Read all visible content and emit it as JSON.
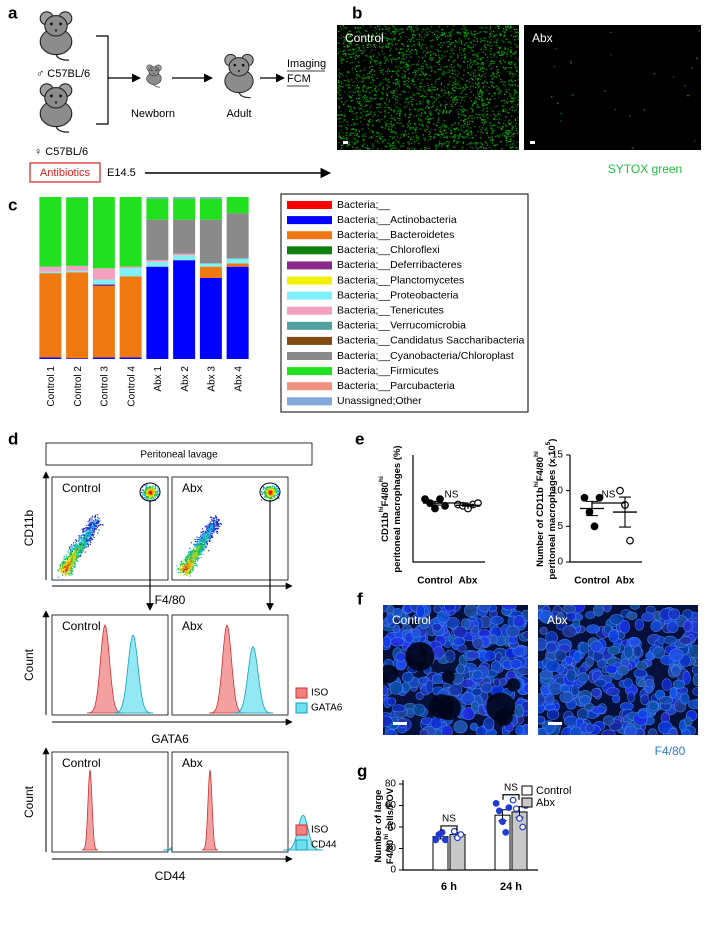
{
  "figure": {
    "a": {
      "label": "a",
      "male": "♂ C57BL/6",
      "female": "♀ C57BL/6",
      "newborn": "Newborn",
      "adult": "Adult",
      "readout": [
        "Imaging",
        "FCM"
      ],
      "treatment": "Antibiotics",
      "timepoint": "E14.5"
    },
    "b": {
      "label": "b",
      "images": [
        "Control",
        "Abx"
      ],
      "stain": "SYTOX green"
    },
    "d": {
      "label": "d",
      "header": "Peritoneal lavage",
      "plots": [
        "Control",
        "Abx"
      ],
      "y_axis": "CD11b",
      "x_axis": "F4/80",
      "count_label": "Count",
      "histograms": [
        {
          "x_axis": "GATA6",
          "legend": [
            "ISO",
            "GATA6"
          ]
        },
        {
          "x_axis": "CD44",
          "legend": [
            "ISO",
            "CD44"
          ]
        }
      ]
    },
    "f": {
      "label": "f",
      "images": [
        "Control",
        "Abx"
      ],
      "stain": "F4/80"
    }
  },
  "chart_data": [
    {
      "type": "stacked_bar",
      "panel": "c",
      "categories": [
        "Control 1",
        "Control 2",
        "Control 3",
        "Control 4",
        "Abx 1",
        "Abx 2",
        "Abx 3",
        "Abx 4"
      ],
      "ylim": [
        0,
        100
      ],
      "series": [
        {
          "name": "Bacteria;__",
          "color": "#ff0000",
          "values": [
            0,
            0,
            0,
            0,
            0,
            0,
            0,
            0
          ]
        },
        {
          "name": "Bacteria;__Actinobacteria",
          "color": "#0000ff",
          "values": [
            1,
            0.5,
            1,
            1,
            57,
            61,
            50,
            57
          ]
        },
        {
          "name": "Bacteria;__Bacteroidetes",
          "color": "#f07810",
          "values": [
            52,
            53,
            44,
            50,
            0,
            0,
            7,
            2
          ]
        },
        {
          "name": "Bacteria;__Chloroflexi",
          "color": "#108010",
          "values": [
            0,
            0,
            0,
            0,
            0,
            0,
            0,
            0
          ]
        },
        {
          "name": "Bacteria;__Deferribacteres",
          "color": "#8a2a8a",
          "values": [
            0,
            0,
            1,
            0,
            0,
            0,
            0,
            0
          ]
        },
        {
          "name": "Bacteria;__Planctomycetes",
          "color": "#f0f000",
          "values": [
            0,
            0,
            0,
            0,
            0,
            0,
            0,
            0
          ]
        },
        {
          "name": "Bacteria;__Proteobacteria",
          "color": "#80f0f8",
          "values": [
            1,
            1,
            3,
            5,
            3,
            3,
            2,
            3
          ]
        },
        {
          "name": "Bacteria;__Tenericutes",
          "color": "#f4a0c0",
          "values": [
            3,
            3,
            7,
            1,
            1,
            1,
            0,
            0
          ]
        },
        {
          "name": "Bacteria;__Verrucomicrobia",
          "color": "#50a0a0",
          "values": [
            0,
            0,
            0,
            0,
            0,
            0,
            0,
            0
          ]
        },
        {
          "name": "Bacteria;__Candidatus Saccharibacteria",
          "color": "#804a10",
          "values": [
            0,
            0,
            0,
            0,
            0,
            0,
            0,
            0
          ]
        },
        {
          "name": "Bacteria;__Cyanobacteria/Chloroplast",
          "color": "#8a8a8a",
          "values": [
            0,
            0,
            0,
            0,
            25,
            21,
            27,
            28
          ]
        },
        {
          "name": "Bacteria;__Firmicutes",
          "color": "#20e020",
          "values": [
            43,
            42,
            44,
            43,
            13,
            13,
            13,
            10
          ]
        },
        {
          "name": "Bacteria;__Parcubacteria",
          "color": "#f09080",
          "values": [
            0,
            0,
            0,
            0,
            0,
            0,
            0,
            0
          ]
        },
        {
          "name": "Unassigned;Other",
          "color": "#80a8d8",
          "values": [
            0,
            0.5,
            0,
            0,
            1,
            1,
            1,
            0
          ]
        }
      ]
    },
    {
      "type": "dot_plot",
      "panel": "e",
      "y_label": [
        {
          "text": "CD11b",
          "sup": "hi"
        },
        {
          "text": "F4/80",
          "sup": "hi"
        }
      ],
      "y_label_2": [
        {
          "text": "peritoneal macrophages (%)"
        }
      ],
      "categories": [
        "Control",
        "Abx"
      ],
      "ylim": [
        0,
        80
      ],
      "annotation": "NS",
      "groups": [
        {
          "points": [
            47,
            44,
            40,
            47,
            42
          ],
          "mean": 44,
          "sem": 1.4,
          "filled": true
        },
        {
          "points": [
            43,
            42,
            40,
            43,
            44
          ],
          "mean": 42.4,
          "sem": 0.7,
          "filled": false
        }
      ]
    },
    {
      "type": "dot_plot",
      "y_label": [
        {
          "text": "Number of CD11b",
          "sup": "hi"
        },
        {
          "text": "F4/80",
          "sup": "hi"
        }
      ],
      "y_label_2": [
        {
          "text": "peritoneal macrophages (x 10",
          "sup": "5"
        },
        {
          "text": ")"
        }
      ],
      "categories": [
        "Control",
        "Abx"
      ],
      "ylim": [
        0,
        15
      ],
      "yticks": [
        0,
        5,
        10,
        15
      ],
      "annotation": "NS",
      "groups": [
        {
          "points": [
            9,
            7,
            5,
            9
          ],
          "mean": 7.5,
          "sem": 1,
          "filled": true
        },
        {
          "points": [
            10,
            8,
            3
          ],
          "mean": 7,
          "sem": 2.1,
          "filled": false
        }
      ]
    },
    {
      "type": "bar",
      "panel": "g",
      "y_label": [
        {
          "text": "Number of large"
        }
      ],
      "y_label_2": [
        {
          "text": "F4/80",
          "sup": "hi"
        },
        {
          "text": " cells/FOV"
        }
      ],
      "categories": [
        "6 h",
        "24 h"
      ],
      "ylim": [
        0,
        80
      ],
      "yticks": [
        0,
        20,
        40,
        60,
        80
      ],
      "annotations": [
        "NS",
        "NS"
      ],
      "series": [
        {
          "name": "Control",
          "color": "#ffffff",
          "values": [
            31,
            51
          ],
          "errors": [
            2,
            5
          ],
          "points": [
            [
              28,
              33,
              35,
              28
            ],
            [
              62,
              55,
              45,
              35,
              58
            ]
          ],
          "filled": true
        },
        {
          "name": "Abx",
          "color": "#c8c8c8",
          "values": [
            33,
            54
          ],
          "errors": [
            2,
            5
          ],
          "points": [
            [
              36,
              30,
              33
            ],
            [
              65,
              57,
              48,
              40,
              60
            ]
          ],
          "filled": false
        }
      ]
    }
  ]
}
